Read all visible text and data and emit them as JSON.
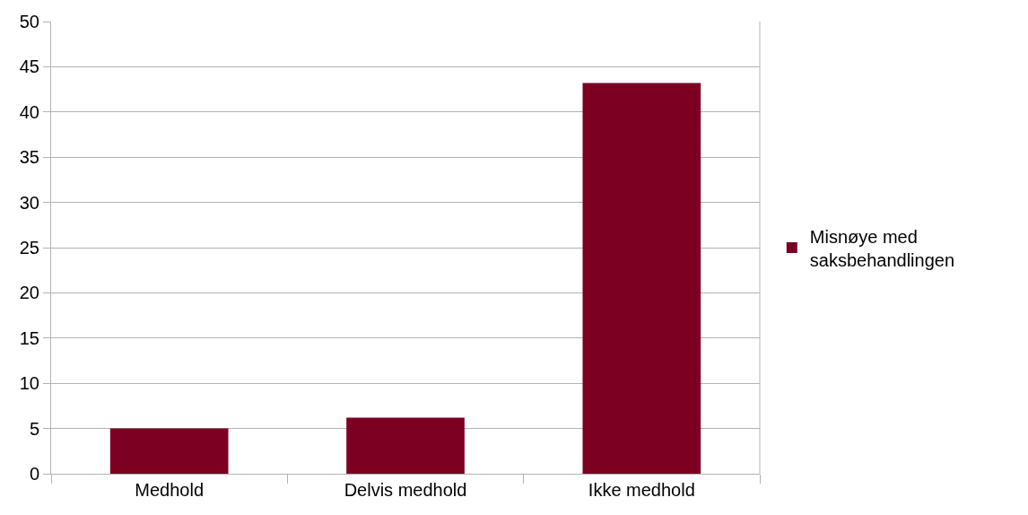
{
  "chart_data": {
    "type": "bar",
    "categories": [
      "Medhold",
      "Delvis medhold",
      "Ikke medhold"
    ],
    "series": [
      {
        "name": "Misnøye med saksbehandlingen",
        "color": "#7b0022",
        "values": [
          5,
          6.2,
          43.2
        ]
      }
    ],
    "ylim": [
      0,
      50
    ],
    "yticks": [
      0,
      5,
      10,
      15,
      20,
      25,
      30,
      35,
      40,
      45,
      50
    ],
    "grid": "y",
    "legend": "right"
  }
}
